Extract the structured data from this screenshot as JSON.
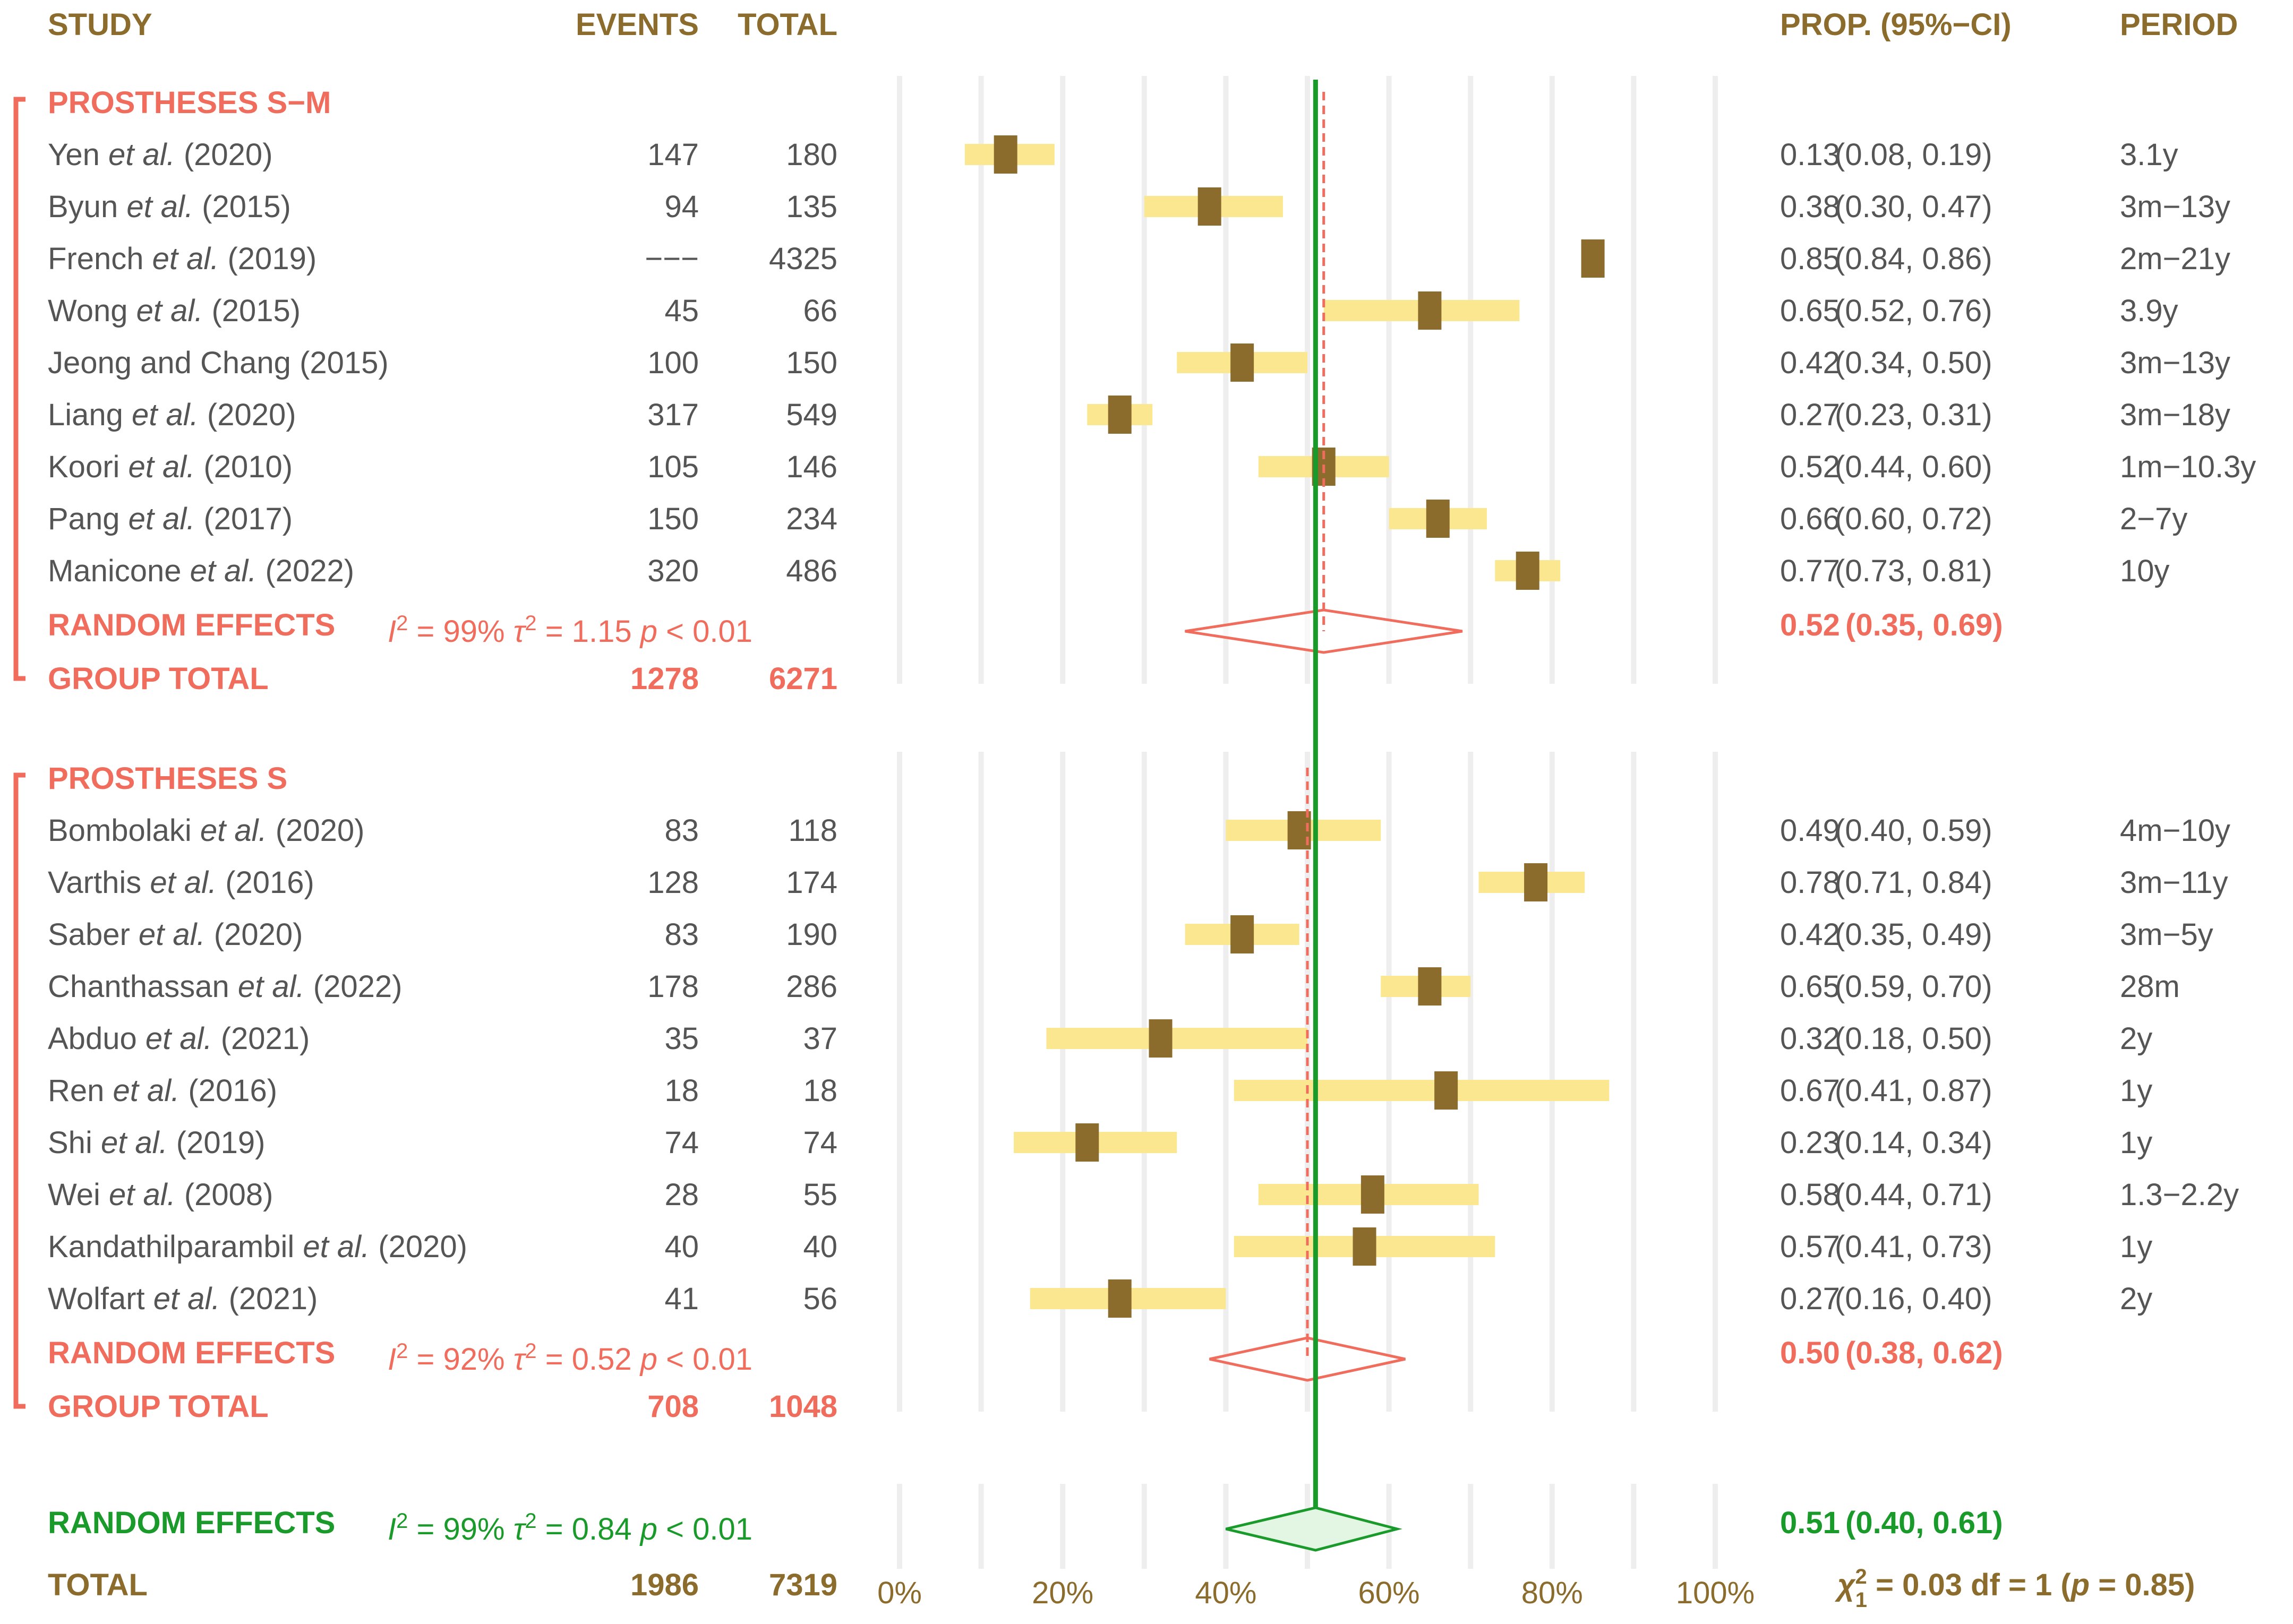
{
  "colors": {
    "header": "#8B6C2D",
    "subgroup": "#F06C5C",
    "overall": "#1A9A2A",
    "text": "#555555",
    "ci_bar": "#FBE78F",
    "square": "#8B6C2D",
    "grid": "#EEEEEE"
  },
  "chart_data": {
    "type": "forest",
    "columns": {
      "study": "STUDY",
      "events": "EVENTS",
      "total": "TOTAL",
      "prop": "PROP. (95%−CI)",
      "period": "PERIOD"
    },
    "xlim": [
      0,
      1
    ],
    "x_ticks": [
      0,
      0.2,
      0.4,
      0.6,
      0.8,
      1.0
    ],
    "x_tick_labels": [
      "0%",
      "20%",
      "40%",
      "60%",
      "80%",
      "100%"
    ],
    "overall_line": 0.51,
    "groups": [
      {
        "name": "PROSTHESES S−M",
        "studies": [
          {
            "author": "Yen",
            "etal": true,
            "year": "(2020)",
            "events": "147",
            "total": "180",
            "est": 0.13,
            "lo": 0.08,
            "hi": 0.19,
            "prop_text": "0.13",
            "ci_text": "(0.08, 0.19)",
            "period": "3.1y"
          },
          {
            "author": "Byun",
            "etal": true,
            "year": "(2015)",
            "events": "94",
            "total": "135",
            "est": 0.38,
            "lo": 0.3,
            "hi": 0.47,
            "prop_text": "0.38",
            "ci_text": "(0.30, 0.47)",
            "period": "3m−13y"
          },
          {
            "author": "French",
            "etal": true,
            "year": "(2019)",
            "events": "−−−",
            "total": "4325",
            "est": 0.85,
            "lo": 0.84,
            "hi": 0.86,
            "prop_text": "0.85",
            "ci_text": "(0.84, 0.86)",
            "period": "2m−21y"
          },
          {
            "author": "Wong",
            "etal": true,
            "year": "(2015)",
            "events": "45",
            "total": "66",
            "est": 0.65,
            "lo": 0.52,
            "hi": 0.76,
            "prop_text": "0.65",
            "ci_text": "(0.52, 0.76)",
            "period": "3.9y"
          },
          {
            "author": "Jeong and Chang",
            "etal": false,
            "year": "(2015)",
            "events": "100",
            "total": "150",
            "est": 0.42,
            "lo": 0.34,
            "hi": 0.5,
            "prop_text": "0.42",
            "ci_text": "(0.34, 0.50)",
            "period": "3m−13y"
          },
          {
            "author": "Liang",
            "etal": true,
            "year": "(2020)",
            "events": "317",
            "total": "549",
            "est": 0.27,
            "lo": 0.23,
            "hi": 0.31,
            "prop_text": "0.27",
            "ci_text": "(0.23, 0.31)",
            "period": "3m−18y"
          },
          {
            "author": "Koori",
            "etal": true,
            "year": "(2010)",
            "events": "105",
            "total": "146",
            "est": 0.52,
            "lo": 0.44,
            "hi": 0.6,
            "prop_text": "0.52",
            "ci_text": "(0.44, 0.60)",
            "period": "1m−10.3y"
          },
          {
            "author": "Pang",
            "etal": true,
            "year": "(2017)",
            "events": "150",
            "total": "234",
            "est": 0.66,
            "lo": 0.6,
            "hi": 0.72,
            "prop_text": "0.66",
            "ci_text": "(0.60, 0.72)",
            "period": "2−7y"
          },
          {
            "author": "Manicone",
            "etal": true,
            "year": "(2022)",
            "events": "320",
            "total": "486",
            "est": 0.77,
            "lo": 0.73,
            "hi": 0.81,
            "prop_text": "0.77",
            "ci_text": "(0.73, 0.81)",
            "period": "10y"
          }
        ],
        "random": {
          "label": "RANDOM EFFECTS",
          "i2": "99%",
          "tau2": "1.15",
          "p": "0.01",
          "est": 0.52,
          "lo": 0.35,
          "hi": 0.69,
          "prop_text": "0.52",
          "ci_text": "(0.35, 0.69)"
        },
        "total": {
          "label": "GROUP TOTAL",
          "events": "1278",
          "total": "6271"
        }
      },
      {
        "name": "PROSTHESES S",
        "studies": [
          {
            "author": "Bombolaki",
            "etal": true,
            "year": "(2020)",
            "events": "83",
            "total": "118",
            "est": 0.49,
            "lo": 0.4,
            "hi": 0.59,
            "prop_text": "0.49",
            "ci_text": "(0.40, 0.59)",
            "period": "4m−10y"
          },
          {
            "author": "Varthis",
            "etal": true,
            "year": "(2016)",
            "events": "128",
            "total": "174",
            "est": 0.78,
            "lo": 0.71,
            "hi": 0.84,
            "prop_text": "0.78",
            "ci_text": "(0.71, 0.84)",
            "period": "3m−11y"
          },
          {
            "author": "Saber",
            "etal": true,
            "year": "(2020)",
            "events": "83",
            "total": "190",
            "est": 0.42,
            "lo": 0.35,
            "hi": 0.49,
            "prop_text": "0.42",
            "ci_text": "(0.35, 0.49)",
            "period": "3m−5y"
          },
          {
            "author": "Chanthassan",
            "etal": true,
            "year": "(2022)",
            "events": "178",
            "total": "286",
            "est": 0.65,
            "lo": 0.59,
            "hi": 0.7,
            "prop_text": "0.65",
            "ci_text": "(0.59, 0.70)",
            "period": "28m"
          },
          {
            "author": "Abduo",
            "etal": true,
            "year": "(2021)",
            "events": "35",
            "total": "37",
            "est": 0.32,
            "lo": 0.18,
            "hi": 0.5,
            "prop_text": "0.32",
            "ci_text": "(0.18, 0.50)",
            "period": "2y"
          },
          {
            "author": "Ren",
            "etal": true,
            "year": "(2016)",
            "events": "18",
            "total": "18",
            "est": 0.67,
            "lo": 0.41,
            "hi": 0.87,
            "prop_text": "0.67",
            "ci_text": "(0.41, 0.87)",
            "period": "1y"
          },
          {
            "author": "Shi",
            "etal": true,
            "year": "(2019)",
            "events": "74",
            "total": "74",
            "est": 0.23,
            "lo": 0.14,
            "hi": 0.34,
            "prop_text": "0.23",
            "ci_text": "(0.14, 0.34)",
            "period": "1y"
          },
          {
            "author": "Wei",
            "etal": true,
            "year": "(2008)",
            "events": "28",
            "total": "55",
            "est": 0.58,
            "lo": 0.44,
            "hi": 0.71,
            "prop_text": "0.58",
            "ci_text": "(0.44, 0.71)",
            "period": "1.3−2.2y"
          },
          {
            "author": "Kandathilparambil",
            "etal": true,
            "year": "(2020)",
            "events": "40",
            "total": "40",
            "est": 0.57,
            "lo": 0.41,
            "hi": 0.73,
            "prop_text": "0.57",
            "ci_text": "(0.41, 0.73)",
            "period": "1y"
          },
          {
            "author": "Wolfart",
            "etal": true,
            "year": "(2021)",
            "events": "41",
            "total": "56",
            "est": 0.27,
            "lo": 0.16,
            "hi": 0.4,
            "prop_text": "0.27",
            "ci_text": "(0.16, 0.40)",
            "period": "2y"
          }
        ],
        "random": {
          "label": "RANDOM EFFECTS",
          "i2": "92%",
          "tau2": "0.52",
          "p": "0.01",
          "est": 0.5,
          "lo": 0.38,
          "hi": 0.62,
          "prop_text": "0.50",
          "ci_text": "(0.38, 0.62)"
        },
        "total": {
          "label": "GROUP TOTAL",
          "events": "708",
          "total": "1048"
        }
      }
    ],
    "overall": {
      "random": {
        "label": "RANDOM EFFECTS",
        "i2": "99%",
        "tau2": "0.84",
        "p": "0.01",
        "est": 0.51,
        "lo": 0.4,
        "hi": 0.61,
        "prop_text": "0.51",
        "ci_text": "(0.40, 0.61)"
      },
      "total": {
        "label": "TOTAL",
        "events": "1986",
        "total": "7319"
      },
      "subgroup_test": {
        "chi2": "0.03",
        "df": "1",
        "p": "0.85"
      }
    }
  }
}
